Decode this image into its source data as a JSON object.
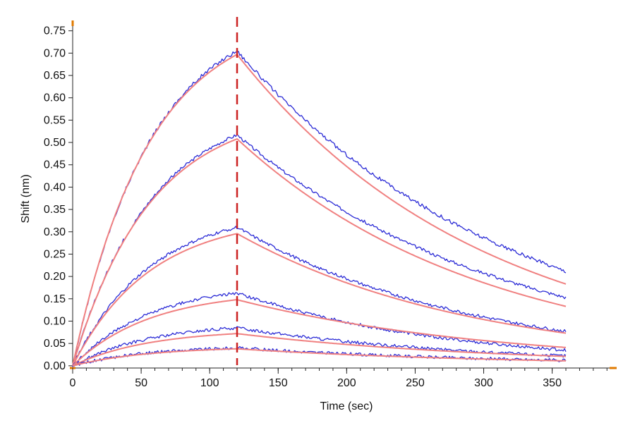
{
  "chart_data": {
    "type": "line",
    "title": "",
    "xlabel": "Time (sec)",
    "ylabel": "Shift (nm)",
    "xlim": [
      0,
      395
    ],
    "ylim": [
      -0.005,
      0.77
    ],
    "x_ticks": [
      0,
      50,
      100,
      150,
      200,
      250,
      300,
      350
    ],
    "y_ticks": [
      0.0,
      0.05,
      0.1,
      0.15,
      0.2,
      0.25,
      0.3,
      0.35,
      0.4,
      0.45,
      0.5,
      0.55,
      0.6,
      0.65,
      0.7,
      0.75
    ],
    "x_minor_step": 10,
    "grid": false,
    "legend": "none",
    "association_end_x": 120,
    "x_end": 360,
    "marker_line": {
      "x": 120,
      "color": "#cc2222",
      "style": "dashed"
    },
    "colors": {
      "measured": "#2b2bd6",
      "measured_dark": "#12128a",
      "fit": "#f08080",
      "axis": "#222222",
      "axis_marker": "#e07a00"
    },
    "series": [
      {
        "role": "measured",
        "peak": 0.705,
        "end": 0.212,
        "shape": 0.75
      },
      {
        "role": "fit",
        "peak": 0.697,
        "end": 0.183,
        "shape": 0.7
      },
      {
        "role": "measured",
        "peak": 0.517,
        "end": 0.153,
        "shape": 0.76
      },
      {
        "role": "fit",
        "peak": 0.508,
        "end": 0.133,
        "shape": 0.72
      },
      {
        "role": "measured",
        "peak": 0.31,
        "end": 0.077,
        "shape": 0.74
      },
      {
        "role": "fit",
        "peak": 0.296,
        "end": 0.073,
        "shape": 0.72
      },
      {
        "role": "measured",
        "peak": 0.163,
        "end": 0.035,
        "shape": 0.73
      },
      {
        "role": "fit",
        "peak": 0.148,
        "end": 0.041,
        "shape": 0.72
      },
      {
        "role": "measured",
        "peak": 0.085,
        "end": 0.022,
        "shape": 0.72
      },
      {
        "role": "fit",
        "peak": 0.072,
        "end": 0.021,
        "shape": 0.7
      },
      {
        "role": "measured",
        "peak": 0.04,
        "end": 0.012,
        "shape": 0.7
      },
      {
        "role": "fit",
        "peak": 0.038,
        "end": 0.011,
        "shape": 0.7
      }
    ]
  }
}
